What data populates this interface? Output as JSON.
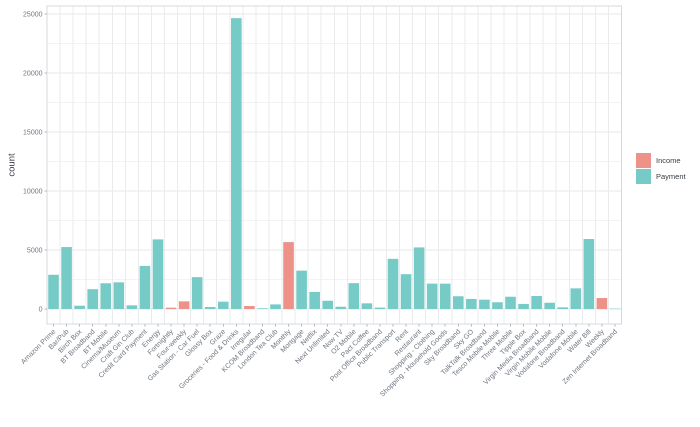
{
  "chart_data": {
    "type": "bar",
    "title": "",
    "xlabel": "",
    "ylabel": "count",
    "ylim": [
      0,
      25935
    ],
    "yticks": [
      0,
      5000,
      10000,
      15000,
      20000,
      25000
    ],
    "yticks_minor": [
      2500,
      7500,
      12500,
      17500,
      22500
    ],
    "grid": true,
    "legend_position": "right",
    "legend": [
      {
        "label": "Income",
        "color": "#ee9189"
      },
      {
        "label": "Payment",
        "color": "#76cbc7"
      }
    ],
    "categories": [
      "Amazon Prime",
      "Bar/Pub",
      "Birch Box",
      "BT Broadband",
      "BT Mobile",
      "Cinema/Museum",
      "Craft Gin Club",
      "Credit Card Payment",
      "Energy",
      "Fortnightly",
      "Four-weekly",
      "Gas Station - Car Fuel",
      "Glossy Box",
      "Graze",
      "Groceries - Food & Drinks",
      "Irregular",
      "KCOM Broadband",
      "London Tea Club",
      "Monthly",
      "Mortgage",
      "Netflix",
      "Next Unlimited",
      "Now TV",
      "O2 Mobile",
      "Pact Coffee",
      "Post Office Broadband",
      "Public Transport",
      "Rent",
      "Restaurant",
      "Shopping - Clothing",
      "Shopping - Household Goods",
      "Sky Broadband",
      "Sky GO",
      "TalkTalk Broadband",
      "Tesco Mobile Mobile",
      "Three Mobile",
      "Tipple Box",
      "Virgin Media Broadband",
      "Virgin Mobile Mobile",
      "Vodafone Broadband",
      "Vodafone Mobile",
      "Water Bill",
      "Weekly",
      "Zen Internet Broadband"
    ],
    "values": [
      2900,
      5250,
      280,
      1680,
      2180,
      2260,
      310,
      3650,
      5900,
      110,
      650,
      2700,
      170,
      620,
      24650,
      250,
      60,
      390,
      5670,
      3250,
      1450,
      700,
      190,
      2190,
      480,
      120,
      4250,
      2950,
      5220,
      2150,
      2150,
      1080,
      850,
      790,
      570,
      1040,
      430,
      1100,
      530,
      140,
      1750,
      5930,
      930,
      30
    ],
    "classes": [
      "Payment",
      "Payment",
      "Payment",
      "Payment",
      "Payment",
      "Payment",
      "Payment",
      "Payment",
      "Payment",
      "Income",
      "Income",
      "Payment",
      "Payment",
      "Payment",
      "Payment",
      "Income",
      "Payment",
      "Payment",
      "Income",
      "Payment",
      "Payment",
      "Payment",
      "Payment",
      "Payment",
      "Payment",
      "Payment",
      "Payment",
      "Payment",
      "Payment",
      "Payment",
      "Payment",
      "Payment",
      "Payment",
      "Payment",
      "Payment",
      "Payment",
      "Payment",
      "Payment",
      "Payment",
      "Payment",
      "Payment",
      "Payment",
      "Income",
      "Payment"
    ],
    "colors": {
      "panel_border": "#d6d9dc",
      "grid_major": "#e5e7e9",
      "grid_minor": "#f2f3f4",
      "grid_vertical": "#e9ebec",
      "tick_mark": "#b6bac0",
      "tick_label": "#6e7680",
      "axis_title": "#373c43"
    }
  }
}
